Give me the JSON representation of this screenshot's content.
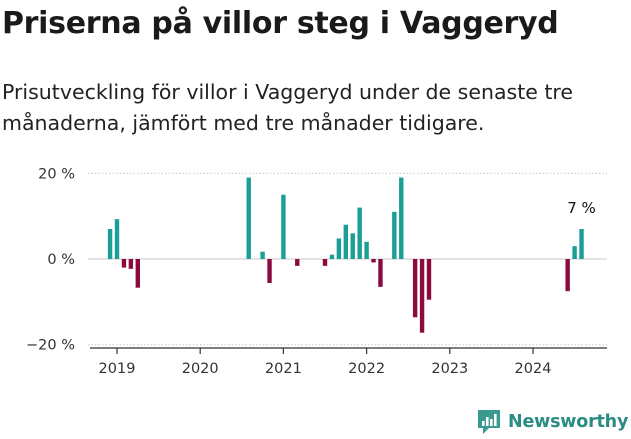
{
  "header": {
    "title": "Priserna på villor steg i Vaggeryd",
    "subtitle": "Prisutveckling för villor i Vaggeryd under de senaste tre månaderna, jämfört med tre månader tidigare."
  },
  "brand": {
    "name": "Newsworthy",
    "icon": "newsworthy-logo-icon"
  },
  "colors": {
    "positive": "#1a9e96",
    "negative": "#8c0b3f",
    "grid": "#c8c8c8",
    "axis": "#333333"
  },
  "chart_data": {
    "type": "bar",
    "title": "",
    "xlabel": "",
    "ylabel": "",
    "ylim": [
      -21,
      21
    ],
    "y_ticks": [
      {
        "value": 20,
        "label": "20 %"
      },
      {
        "value": 0,
        "label": "0 %"
      },
      {
        "value": -20,
        "label": "−20 %"
      }
    ],
    "x_ticks": [
      "2019",
      "2020",
      "2021",
      "2022",
      "2023",
      "2024"
    ],
    "grid": true,
    "series": [
      {
        "values": [
          {
            "date": "2018-12",
            "value": 7
          },
          {
            "date": "2019-01",
            "value": 9.3
          },
          {
            "date": "2019-02",
            "value": -2
          },
          {
            "date": "2019-03",
            "value": -2.3
          },
          {
            "date": "2019-04",
            "value": -6.7
          },
          {
            "date": "2020-08",
            "value": 19
          },
          {
            "date": "2020-10",
            "value": 1.7
          },
          {
            "date": "2020-11",
            "value": -5.6
          },
          {
            "date": "2021-01",
            "value": 15
          },
          {
            "date": "2021-03",
            "value": -1.6
          },
          {
            "date": "2021-07",
            "value": -1.6
          },
          {
            "date": "2021-08",
            "value": 1
          },
          {
            "date": "2021-09",
            "value": 4.8
          },
          {
            "date": "2021-10",
            "value": 8
          },
          {
            "date": "2021-11",
            "value": 6
          },
          {
            "date": "2021-12",
            "value": 12
          },
          {
            "date": "2022-01",
            "value": 4
          },
          {
            "date": "2022-02",
            "value": -0.8
          },
          {
            "date": "2022-03",
            "value": -6.5
          },
          {
            "date": "2022-05",
            "value": 11
          },
          {
            "date": "2022-06",
            "value": 19
          },
          {
            "date": "2022-08",
            "value": -13.6
          },
          {
            "date": "2022-09",
            "value": -17.2
          },
          {
            "date": "2022-10",
            "value": -9.5
          },
          {
            "date": "2024-06",
            "value": -7.5
          },
          {
            "date": "2024-07",
            "value": 3
          },
          {
            "date": "2024-08",
            "value": 7
          }
        ]
      }
    ],
    "annotations": [
      {
        "date": "2024-08",
        "text": "7 %"
      }
    ]
  }
}
